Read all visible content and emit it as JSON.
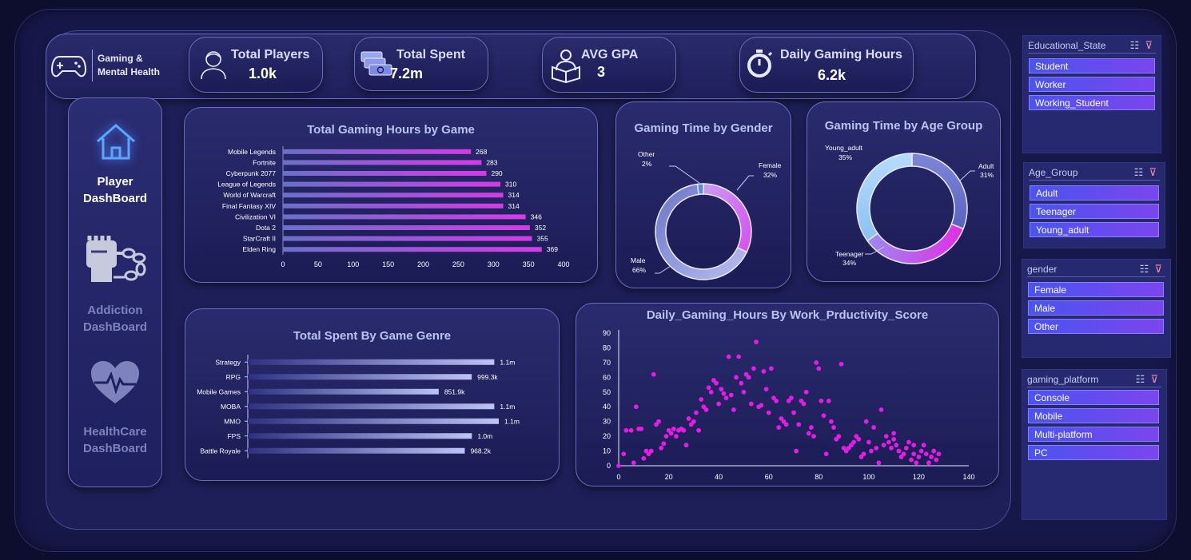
{
  "brand": {
    "line1": "Gaming &",
    "line2": "Mental Health",
    "icon": "gamepad-icon"
  },
  "kpis": [
    {
      "title": "Total Players",
      "value": "1.0k",
      "icon": "player-avatar-icon"
    },
    {
      "title": "Total Spent",
      "value": "7.2m",
      "icon": "money-stack-icon"
    },
    {
      "title": "AVG GPA",
      "value": "3",
      "icon": "student-reading-icon"
    },
    {
      "title": "Daily Gaming Hours",
      "value": "6.2k",
      "icon": "stopwatch-icon"
    }
  ],
  "sidebar": [
    {
      "line1": "Player",
      "line2": "DashBoard",
      "icon": "home-icon",
      "active": true
    },
    {
      "line1": "Addiction",
      "line2": "DashBoard",
      "icon": "chained-fist-icon",
      "active": false
    },
    {
      "line1": "HealthCare",
      "line2": "DashBoard",
      "icon": "heart-pulse-icon",
      "active": false
    }
  ],
  "colors": {
    "magenta": "#e61be6",
    "pink_bar": "#d63ae8",
    "light_bar": "#bcc3f5",
    "accent": "#6f5bf2"
  },
  "chart_data": [
    {
      "type": "bar",
      "orientation": "horizontal",
      "title": "Total Gaming Hours by Game",
      "categories": [
        "Mobile Legends",
        "Fortnite",
        "Cyberpunk 2077",
        "League of Legends",
        "World of Warcraft",
        "Final Fantasy XIV",
        "Civilization VI",
        "Dota 2",
        "StarCraft II",
        "Elden Ring"
      ],
      "values": [
        268,
        283,
        290,
        310,
        314,
        314,
        346,
        352,
        355,
        369
      ],
      "xlim": [
        0,
        400
      ],
      "xticks": [
        0,
        50,
        100,
        150,
        200,
        250,
        300,
        350,
        400
      ],
      "data_labels": true,
      "grid": false
    },
    {
      "type": "pie",
      "donut": true,
      "title": "Gaming Time by Gender",
      "labels": [
        "Female",
        "Male",
        "Other"
      ],
      "values": [
        32,
        66,
        2
      ],
      "value_labels": [
        "32%",
        "66%",
        "2%"
      ]
    },
    {
      "type": "pie",
      "donut": true,
      "title": "Gaming Time by Age Group",
      "labels": [
        "Adult",
        "Teenager",
        "Young_adult"
      ],
      "values": [
        31,
        34,
        35
      ],
      "value_labels": [
        "31%",
        "34%",
        "35%"
      ]
    },
    {
      "type": "bar",
      "orientation": "horizontal",
      "title": "Total Spent By Game Genre",
      "categories": [
        "Strategy",
        "RPG",
        "Mobile Games",
        "MOBA",
        "MMO",
        "FPS",
        "Battle Royale"
      ],
      "values": [
        1100000,
        999300,
        851900,
        1100000,
        1120000,
        1000000,
        968200
      ],
      "value_labels": [
        "1.1m",
        "999.3k",
        "851.9k",
        "1.1m",
        "1.1m",
        "1.0m",
        "968.2k"
      ],
      "grid": false
    },
    {
      "type": "scatter",
      "title": "Daily_Gaming_Hours By Work_Prductivity_Score",
      "xlim": [
        0,
        140
      ],
      "ylim": [
        0,
        90
      ],
      "xticks": [
        0,
        20,
        40,
        60,
        80,
        100,
        120,
        140
      ],
      "yticks": [
        0,
        10,
        20,
        30,
        40,
        50,
        60,
        70,
        80,
        90
      ],
      "points": [
        [
          0,
          0
        ],
        [
          2,
          8
        ],
        [
          3,
          24
        ],
        [
          5,
          24
        ],
        [
          6,
          2
        ],
        [
          7,
          40
        ],
        [
          8,
          25
        ],
        [
          9,
          25
        ],
        [
          10,
          5
        ],
        [
          11,
          10
        ],
        [
          12,
          8
        ],
        [
          13,
          10
        ],
        [
          14,
          62
        ],
        [
          15,
          28
        ],
        [
          16,
          30
        ],
        [
          17,
          12
        ],
        [
          18,
          15
        ],
        [
          19,
          20
        ],
        [
          20,
          24
        ],
        [
          21,
          22
        ],
        [
          22,
          25
        ],
        [
          23,
          20
        ],
        [
          24,
          24
        ],
        [
          25,
          25
        ],
        [
          26,
          24
        ],
        [
          27,
          14
        ],
        [
          28,
          32
        ],
        [
          29,
          28
        ],
        [
          30,
          30
        ],
        [
          31,
          36
        ],
        [
          32,
          24
        ],
        [
          33,
          45
        ],
        [
          34,
          40
        ],
        [
          35,
          38
        ],
        [
          36,
          53
        ],
        [
          37,
          50
        ],
        [
          38,
          58
        ],
        [
          39,
          56
        ],
        [
          40,
          42
        ],
        [
          41,
          52
        ],
        [
          42,
          49
        ],
        [
          43,
          46
        ],
        [
          44,
          74
        ],
        [
          45,
          48
        ],
        [
          46,
          38
        ],
        [
          47,
          60
        ],
        [
          48,
          74
        ],
        [
          49,
          56
        ],
        [
          50,
          50
        ],
        [
          51,
          62
        ],
        [
          52,
          60
        ],
        [
          53,
          42
        ],
        [
          54,
          66
        ],
        [
          55,
          84
        ],
        [
          56,
          40
        ],
        [
          57,
          41
        ],
        [
          58,
          64
        ],
        [
          59,
          52
        ],
        [
          60,
          36
        ],
        [
          61,
          66
        ],
        [
          62,
          46
        ],
        [
          63,
          44
        ],
        [
          64,
          26
        ],
        [
          65,
          32
        ],
        [
          66,
          30
        ],
        [
          67,
          28
        ],
        [
          68,
          44
        ],
        [
          69,
          46
        ],
        [
          70,
          36
        ],
        [
          71,
          10
        ],
        [
          72,
          28
        ],
        [
          73,
          44
        ],
        [
          74,
          42
        ],
        [
          75,
          50
        ],
        [
          76,
          22
        ],
        [
          77,
          26
        ],
        [
          78,
          20
        ],
        [
          79,
          70
        ],
        [
          80,
          66
        ],
        [
          81,
          44
        ],
        [
          82,
          34
        ],
        [
          83,
          8
        ],
        [
          84,
          44
        ],
        [
          85,
          30
        ],
        [
          86,
          26
        ],
        [
          87,
          18
        ],
        [
          88,
          20
        ],
        [
          89,
          69
        ],
        [
          90,
          12
        ],
        [
          91,
          10
        ],
        [
          92,
          12
        ],
        [
          93,
          14
        ],
        [
          94,
          16
        ],
        [
          95,
          20
        ],
        [
          96,
          18
        ],
        [
          97,
          6
        ],
        [
          98,
          8
        ],
        [
          99,
          30
        ],
        [
          100,
          16
        ],
        [
          101,
          10
        ],
        [
          102,
          26
        ],
        [
          103,
          12
        ],
        [
          104,
          2
        ],
        [
          105,
          38
        ],
        [
          106,
          14
        ],
        [
          107,
          20
        ],
        [
          108,
          16
        ],
        [
          109,
          12
        ],
        [
          110,
          18
        ],
        [
          111,
          14
        ],
        [
          112,
          10
        ],
        [
          113,
          6
        ],
        [
          114,
          8
        ],
        [
          115,
          12
        ],
        [
          116,
          16
        ],
        [
          117,
          4
        ],
        [
          118,
          8
        ],
        [
          119,
          2
        ],
        [
          120,
          6
        ],
        [
          121,
          10
        ],
        [
          122,
          14
        ],
        [
          123,
          8
        ],
        [
          124,
          2
        ],
        [
          125,
          6
        ],
        [
          126,
          10
        ],
        [
          127,
          4
        ],
        [
          128,
          8
        ],
        [
          110,
          22
        ],
        [
          118,
          14
        ]
      ]
    }
  ],
  "slicers": [
    {
      "title": "Educational_State",
      "items": [
        "Student",
        "Worker",
        "Working_Student"
      ]
    },
    {
      "title": "Age_Group",
      "items": [
        "Adult",
        "Teenager",
        "Young_adult"
      ]
    },
    {
      "title": "gender",
      "items": [
        "Female",
        "Male",
        "Other"
      ]
    },
    {
      "title": "gaming_platform",
      "items": [
        "Console",
        "Mobile",
        "Multi-platform",
        "PC"
      ]
    }
  ],
  "slicer_tools": {
    "multi_select_icon": "multi-select-icon",
    "clear_filter_icon": "clear-filter-icon"
  }
}
